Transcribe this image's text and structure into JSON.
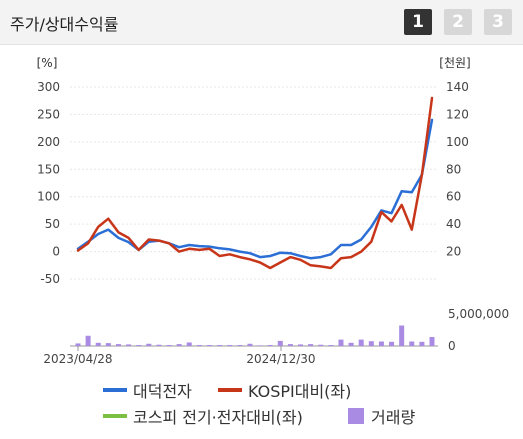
{
  "header": {
    "title": "주가/상대수익률",
    "tabs": [
      {
        "label": "1",
        "active": true
      },
      {
        "label": "2",
        "active": false
      },
      {
        "label": "3",
        "active": false
      }
    ]
  },
  "chart_data": {
    "type": "line",
    "left_axis": {
      "unit": "[%]",
      "ticks": [
        "300",
        "250",
        "200",
        "150",
        "100",
        "50",
        "0",
        "-50"
      ],
      "range": [
        -50,
        300
      ]
    },
    "right_axis": {
      "unit": "[천원]",
      "ticks": [
        "140",
        "120",
        "100",
        "80",
        "60",
        "40",
        "20"
      ],
      "range": [
        0,
        140
      ]
    },
    "volume_axis": {
      "ticks": [
        "5,000,000",
        "0"
      ],
      "max": 5000000
    },
    "x_labels": [
      "2023/04/28",
      "2024/12/30"
    ],
    "series": [
      {
        "name": "대덕전자",
        "color": "#2b6fd6",
        "values": [
          5,
          18,
          32,
          40,
          25,
          17,
          3,
          18,
          20,
          15,
          8,
          12,
          10,
          9,
          6,
          4,
          0,
          -3,
          -10,
          -8,
          -2,
          -3,
          -8,
          -12,
          -10,
          -5,
          12,
          12,
          22,
          45,
          75,
          70,
          110,
          108,
          140,
          240
        ]
      },
      {
        "name": "KOSPI대비(좌)",
        "color": "#c8361a",
        "values": [
          2,
          15,
          45,
          60,
          35,
          25,
          3,
          22,
          20,
          15,
          0,
          5,
          3,
          5,
          -8,
          -5,
          -10,
          -14,
          -20,
          -30,
          -20,
          -10,
          -15,
          -25,
          -27,
          -30,
          -12,
          -10,
          0,
          18,
          72,
          55,
          85,
          40,
          140,
          280
        ]
      },
      {
        "name": "코스피 전기·전자대비(좌)",
        "color": "#7bc043",
        "values": []
      }
    ],
    "volume": {
      "name": "거래량",
      "color": "#a98be3",
      "values": [
        400000,
        1600000,
        500000,
        450000,
        300000,
        250000,
        150000,
        350000,
        200000,
        150000,
        300000,
        550000,
        150000,
        150000,
        150000,
        150000,
        150000,
        350000,
        100000,
        150000,
        800000,
        300000,
        250000,
        300000,
        200000,
        150000,
        1000000,
        500000,
        1000000,
        750000,
        700000,
        650000,
        3200000,
        700000,
        650000,
        1400000
      ]
    }
  }
}
